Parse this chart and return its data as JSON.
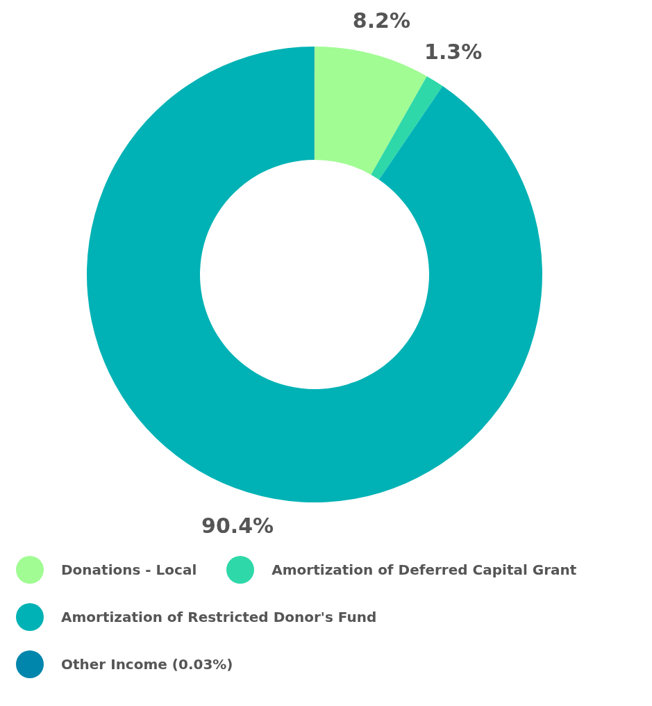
{
  "chart_data": {
    "type": "donut",
    "categories": [
      "Donations - Local",
      "Amortization of Deferred Capital Grant",
      "Amortization of Restricted Donor's Fund",
      "Other Income (0.03%)"
    ],
    "values": [
      8.2,
      1.3,
      90.4,
      0.03
    ],
    "colors": [
      "#a0fc93",
      "#2ed8a9",
      "#00b2b5",
      "#0086ac"
    ],
    "value_labels": [
      "8.2%",
      "1.3%",
      "90.4%",
      null
    ],
    "legend": "bottom"
  }
}
